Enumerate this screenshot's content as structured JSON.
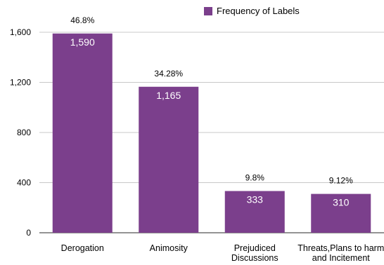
{
  "legend": {
    "label": "Frequency of Labels"
  },
  "colors": {
    "bar": "#7b3f8c",
    "grid": "#c8c8c8",
    "axis": "#555555",
    "value_text": "#ffffff"
  },
  "chart_data": {
    "type": "bar",
    "categories": [
      "Derogation",
      "Animosity",
      "Prejudiced Discussions",
      "Threats,Plans to harm and Incitement"
    ],
    "category_lines": [
      [
        "Derogation"
      ],
      [
        "Animosity"
      ],
      [
        "Prejudiced",
        "Discussions"
      ],
      [
        "Threats,Plans to harm",
        "and Incitement"
      ]
    ],
    "series": [
      {
        "name": "Frequency of Labels",
        "values": [
          1590,
          1165,
          333,
          310
        ]
      }
    ],
    "value_labels": [
      "1,590",
      "1,165",
      "333",
      "310"
    ],
    "percent_labels": [
      "46.8%",
      "34.28%",
      "9.8%",
      "9.12%"
    ],
    "ylim": [
      0,
      1600
    ],
    "yticks": [
      0,
      400,
      800,
      1200,
      1600
    ],
    "ytick_labels": [
      "0",
      "400",
      "800",
      "1,200",
      "1,600"
    ],
    "grid": true,
    "legend_position": "top-right"
  }
}
